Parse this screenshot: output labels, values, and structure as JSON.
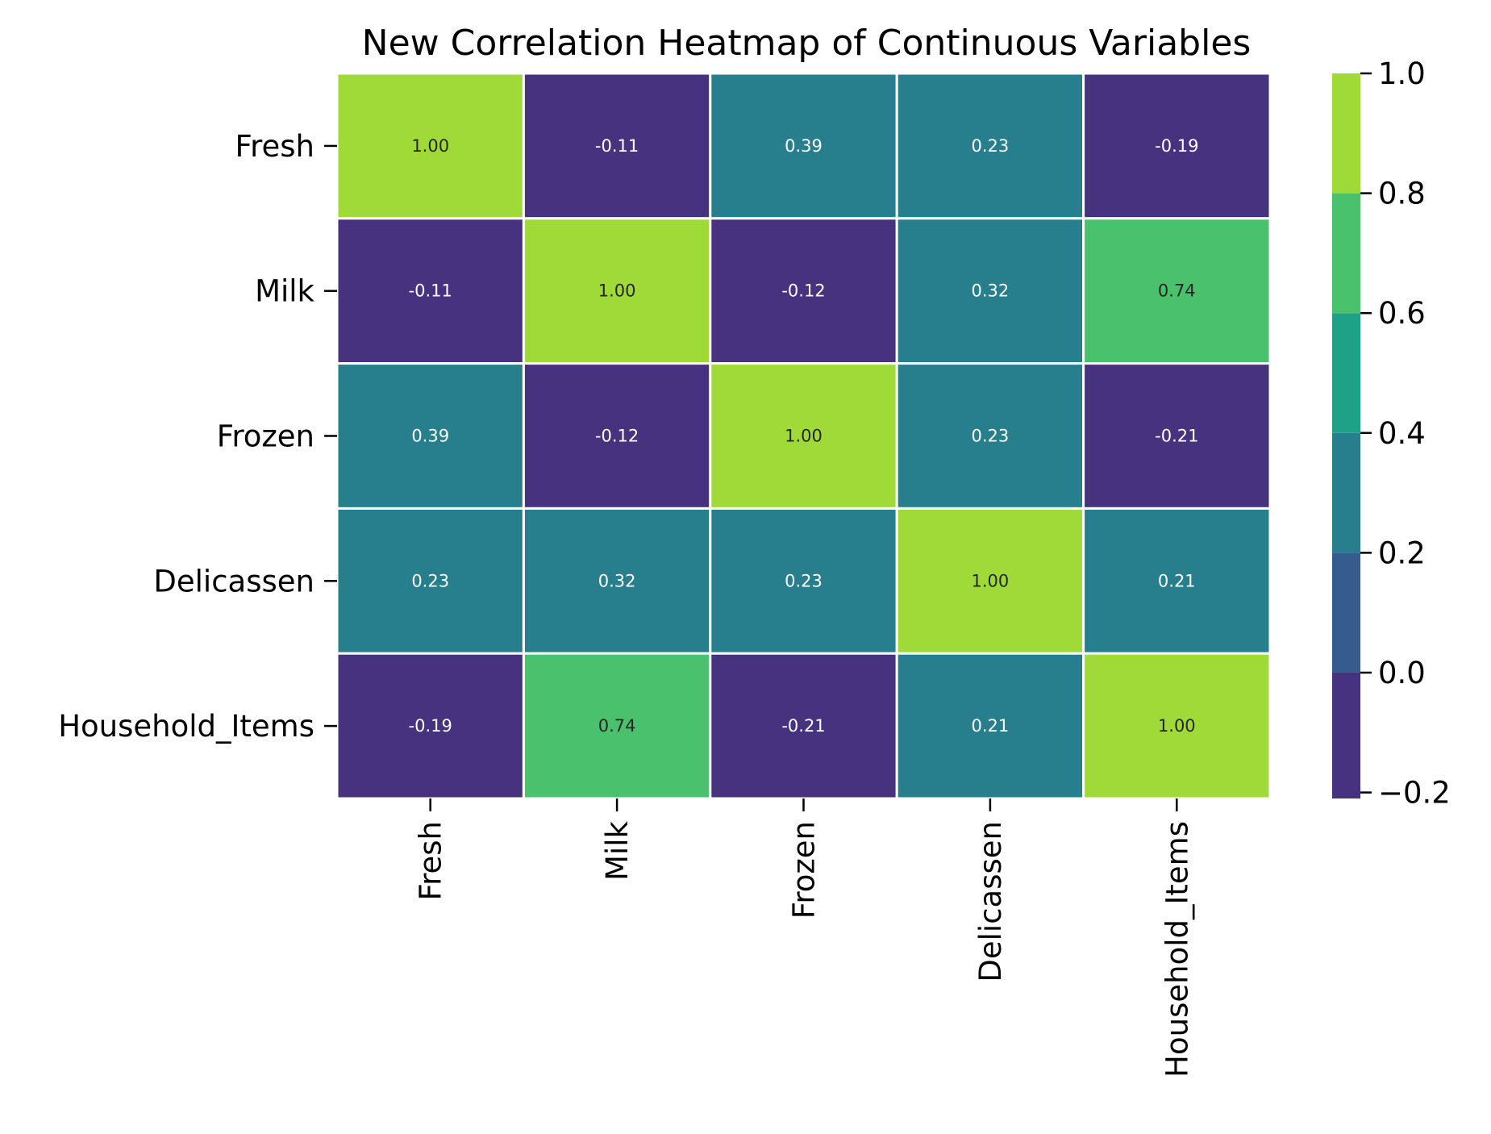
{
  "chart_data": {
    "type": "heatmap",
    "title": "New Correlation Heatmap of Continuous Variables",
    "xlabel": "",
    "ylabel": "",
    "x_categories": [
      "Fresh",
      "Milk",
      "Frozen",
      "Delicassen",
      "Household_Items"
    ],
    "y_categories": [
      "Fresh",
      "Milk",
      "Frozen",
      "Delicassen",
      "Household_Items"
    ],
    "values": [
      [
        1.0,
        -0.11,
        0.39,
        0.23,
        -0.19
      ],
      [
        -0.11,
        1.0,
        -0.12,
        0.32,
        0.74
      ],
      [
        0.39,
        -0.12,
        1.0,
        0.23,
        -0.21
      ],
      [
        0.23,
        0.32,
        0.23,
        1.0,
        0.21
      ],
      [
        -0.19,
        0.74,
        -0.21,
        0.21,
        1.0
      ]
    ],
    "value_format": "0.00",
    "colorbar": {
      "range": [
        -0.21,
        1.0
      ],
      "ticks": [
        1.0,
        0.8,
        0.6,
        0.4,
        0.2,
        0.0,
        -0.2
      ],
      "tick_labels": [
        "1.0",
        "0.8",
        "0.6",
        "0.4",
        "0.2",
        "0.0",
        "−0.2"
      ],
      "bins": [
        {
          "from": -0.21,
          "to": 0.0,
          "color": "#46327e"
        },
        {
          "from": 0.0,
          "to": 0.2,
          "color": "#365c8d"
        },
        {
          "from": 0.2,
          "to": 0.4,
          "color": "#277f8e"
        },
        {
          "from": 0.4,
          "to": 0.6,
          "color": "#1fa187"
        },
        {
          "from": 0.6,
          "to": 0.8,
          "color": "#4ac16d"
        },
        {
          "from": 0.8,
          "to": 1.0,
          "color": "#a0da39"
        }
      ]
    },
    "colormap": "viridis (discrete, 6 bins)",
    "legend": "colorbar-right",
    "grid": false
  }
}
